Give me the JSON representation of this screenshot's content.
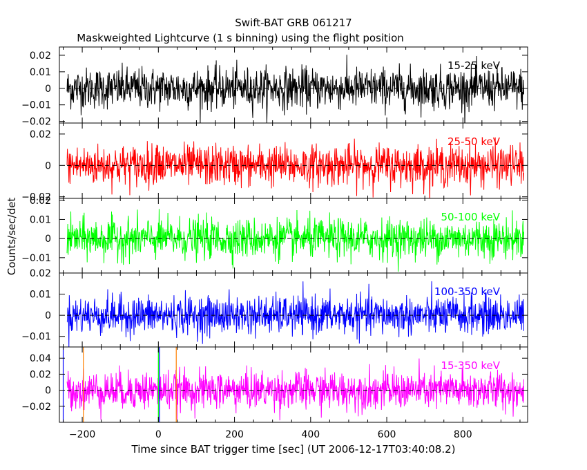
{
  "title": "Swift-BAT GRB 061217",
  "subtitle": "Maskweighted Lightcurve (1 s binning) using the flight position",
  "ylabel": "Counts/sec/det",
  "xlabel": "Time since BAT trigger time [sec] (UT 2006-12-17T03:40:08.2)",
  "colors": {
    "black": "#000000",
    "red": "#ff0000",
    "green": "#00ff00",
    "blue": "#0000ff",
    "magenta": "#ff00ff",
    "orange": "#ff8000",
    "dash": "#000000"
  },
  "chart_data": {
    "type": "line",
    "x_range": [
      -260,
      970
    ],
    "x_ticks": [
      -200,
      0,
      200,
      400,
      600,
      800
    ],
    "data_x_range": [
      -240,
      960
    ],
    "bin_seconds": 1,
    "panels": [
      {
        "band": "15-25 keV",
        "color": "black",
        "ylim": [
          -0.021,
          0.025
        ],
        "yticks": [
          0.02,
          0.01,
          0,
          -0.01,
          -0.02
        ],
        "ytick_labels": [
          "0.02",
          "0.01",
          "0",
          "−0.01",
          "−0.02"
        ],
        "noise_sigma": 0.0062,
        "baseline": 0
      },
      {
        "band": "25-50 keV",
        "color": "red",
        "ylim": [
          -0.021,
          0.027
        ],
        "yticks": [
          0.02,
          0,
          -0.02
        ],
        "ytick_labels": [
          "0.02",
          "0",
          "−0.02"
        ],
        "noise_sigma": 0.0065,
        "baseline": 0
      },
      {
        "band": "50-100 keV",
        "color": "green",
        "ylim": [
          -0.018,
          0.021
        ],
        "yticks": [
          0.02,
          0.01,
          0,
          -0.01
        ],
        "ytick_labels": [
          "0.02",
          "0.01",
          "0",
          "−0.01"
        ],
        "noise_sigma": 0.0052,
        "baseline": 0
      },
      {
        "band": "100-350 keV",
        "color": "blue",
        "ylim": [
          -0.015,
          0.02
        ],
        "yticks": [
          0.02,
          0.01,
          0,
          -0.01
        ],
        "ytick_labels": [
          "0.02",
          "0.01",
          "0",
          "−0.01"
        ],
        "noise_sigma": 0.0045,
        "baseline": 0
      },
      {
        "band": "15-350 keV",
        "color": "magenta",
        "ylim": [
          -0.04,
          0.054
        ],
        "yticks": [
          0.04,
          0.02,
          0,
          -0.02
        ],
        "ytick_labels": [
          "0.04",
          "0.02",
          "0",
          "−0.02"
        ],
        "noise_sigma": 0.012,
        "baseline": 0
      }
    ],
    "markers": [
      {
        "x": -197,
        "color": "orange"
      },
      {
        "x": 47,
        "color": "orange"
      },
      {
        "x": -250,
        "color": "blue"
      },
      {
        "x": 3,
        "color": "blue"
      },
      {
        "x": 0,
        "color": "green"
      }
    ]
  }
}
